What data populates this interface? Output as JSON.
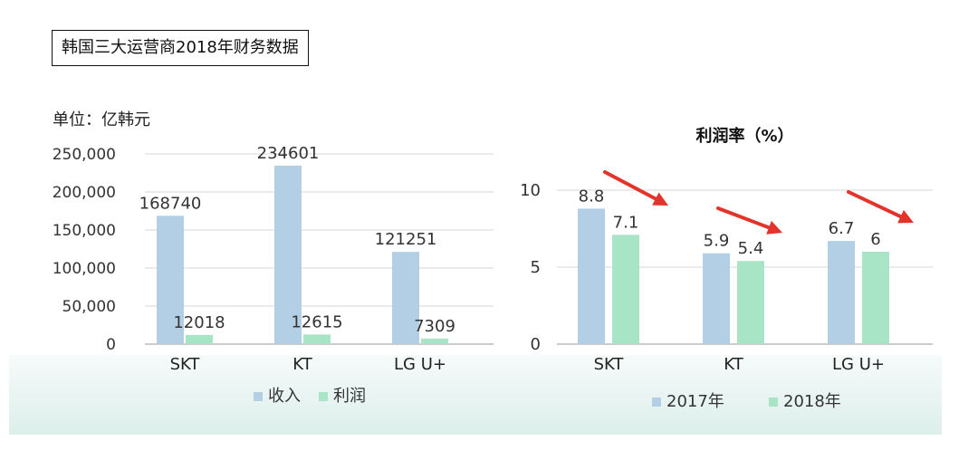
{
  "header": {
    "title": "韩国三大运营商2018年财务数据",
    "unit": "单位：亿韩元"
  },
  "colors": {
    "blue": "#b3cfe6",
    "green": "#a8e4c6",
    "arrow": "#e3342b",
    "grid": "#d7d7d7",
    "axis": "#9a9a9a"
  },
  "chart_data": [
    {
      "type": "bar",
      "title": "",
      "categories": [
        "SKT",
        "KT",
        "LG U+"
      ],
      "series": [
        {
          "name": "收入",
          "values": [
            168740,
            234601,
            121251
          ],
          "labels": [
            "168740",
            "234601",
            "121251"
          ]
        },
        {
          "name": "利润",
          "values": [
            12018,
            12615,
            7309
          ],
          "labels": [
            "12018",
            "12615",
            "7309"
          ]
        }
      ],
      "yticks": [
        0,
        50000,
        100000,
        150000,
        200000,
        250000
      ],
      "ytick_labels": [
        "0",
        "50,000",
        "100,000",
        "150,000",
        "200,000",
        "250,000"
      ],
      "ylim": [
        0,
        250000
      ],
      "grid": true,
      "legend": "bottom"
    },
    {
      "type": "bar",
      "title": "利润率（%）",
      "categories": [
        "SKT",
        "KT",
        "LG U+"
      ],
      "series": [
        {
          "name": "2017年",
          "values": [
            8.8,
            5.9,
            6.7
          ],
          "labels": [
            "8.8",
            "5.9",
            "6.7"
          ]
        },
        {
          "name": "2018年",
          "values": [
            7.1,
            5.4,
            6
          ],
          "labels": [
            "7.1",
            "5.4",
            "6"
          ]
        }
      ],
      "yticks": [
        0,
        5,
        10
      ],
      "ytick_labels": [
        "0",
        "5",
        "10"
      ],
      "ylim": [
        0,
        11
      ],
      "grid": true,
      "legend": "bottom",
      "annotations": [
        "arrow-down",
        "arrow-down",
        "arrow-down"
      ]
    }
  ]
}
